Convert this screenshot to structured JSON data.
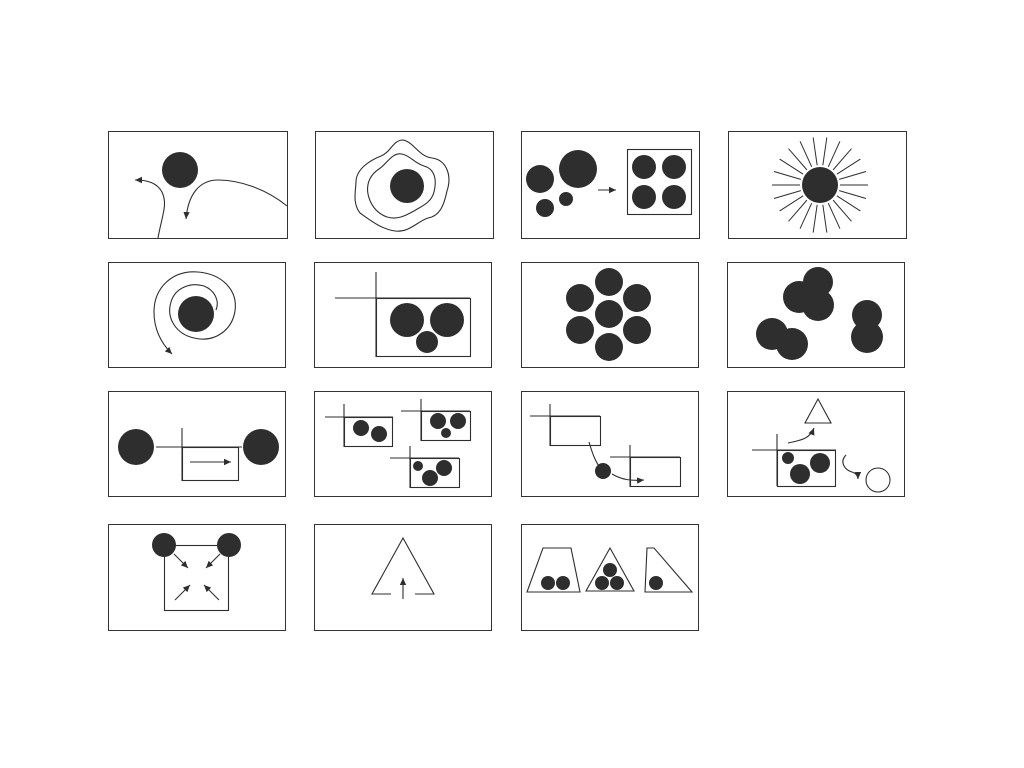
{
  "colors": {
    "ink": "#2e2e2e",
    "frame": "#333333",
    "background": "#ffffff"
  },
  "panels": [
    {
      "id": "spreading-paths",
      "icon": "circle-with-diverging-arrows-icon"
    },
    {
      "id": "contour-rings",
      "icon": "circle-with-contour-rings-icon"
    },
    {
      "id": "grouping-into-box",
      "icon": "circles-moving-into-box-icon"
    },
    {
      "id": "radiating-burst",
      "icon": "circle-with-radiating-lines-icon"
    },
    {
      "id": "spiral-path",
      "icon": "circle-with-spiral-arrow-icon"
    },
    {
      "id": "cluster-in-frame",
      "icon": "three-circles-in-frame-icon"
    },
    {
      "id": "flower-cluster",
      "icon": "seven-circle-flower-icon"
    },
    {
      "id": "overlapping-pairs",
      "icon": "overlapping-circle-pairs-icon"
    },
    {
      "id": "transfer-between",
      "icon": "circles-with-transfer-box-icon"
    },
    {
      "id": "three-groups",
      "icon": "three-framed-groups-icon"
    },
    {
      "id": "moving-between-frames",
      "icon": "circle-moving-between-frames-icon"
    },
    {
      "id": "transformation",
      "icon": "circles-to-triangle-and-ring-icon"
    },
    {
      "id": "converging-arrows",
      "icon": "converging-arrows-square-icon"
    },
    {
      "id": "triangle-up-arrow",
      "icon": "triangle-with-up-arrow-icon"
    },
    {
      "id": "circles-in-triangles",
      "icon": "circles-in-triangles-icon"
    }
  ]
}
